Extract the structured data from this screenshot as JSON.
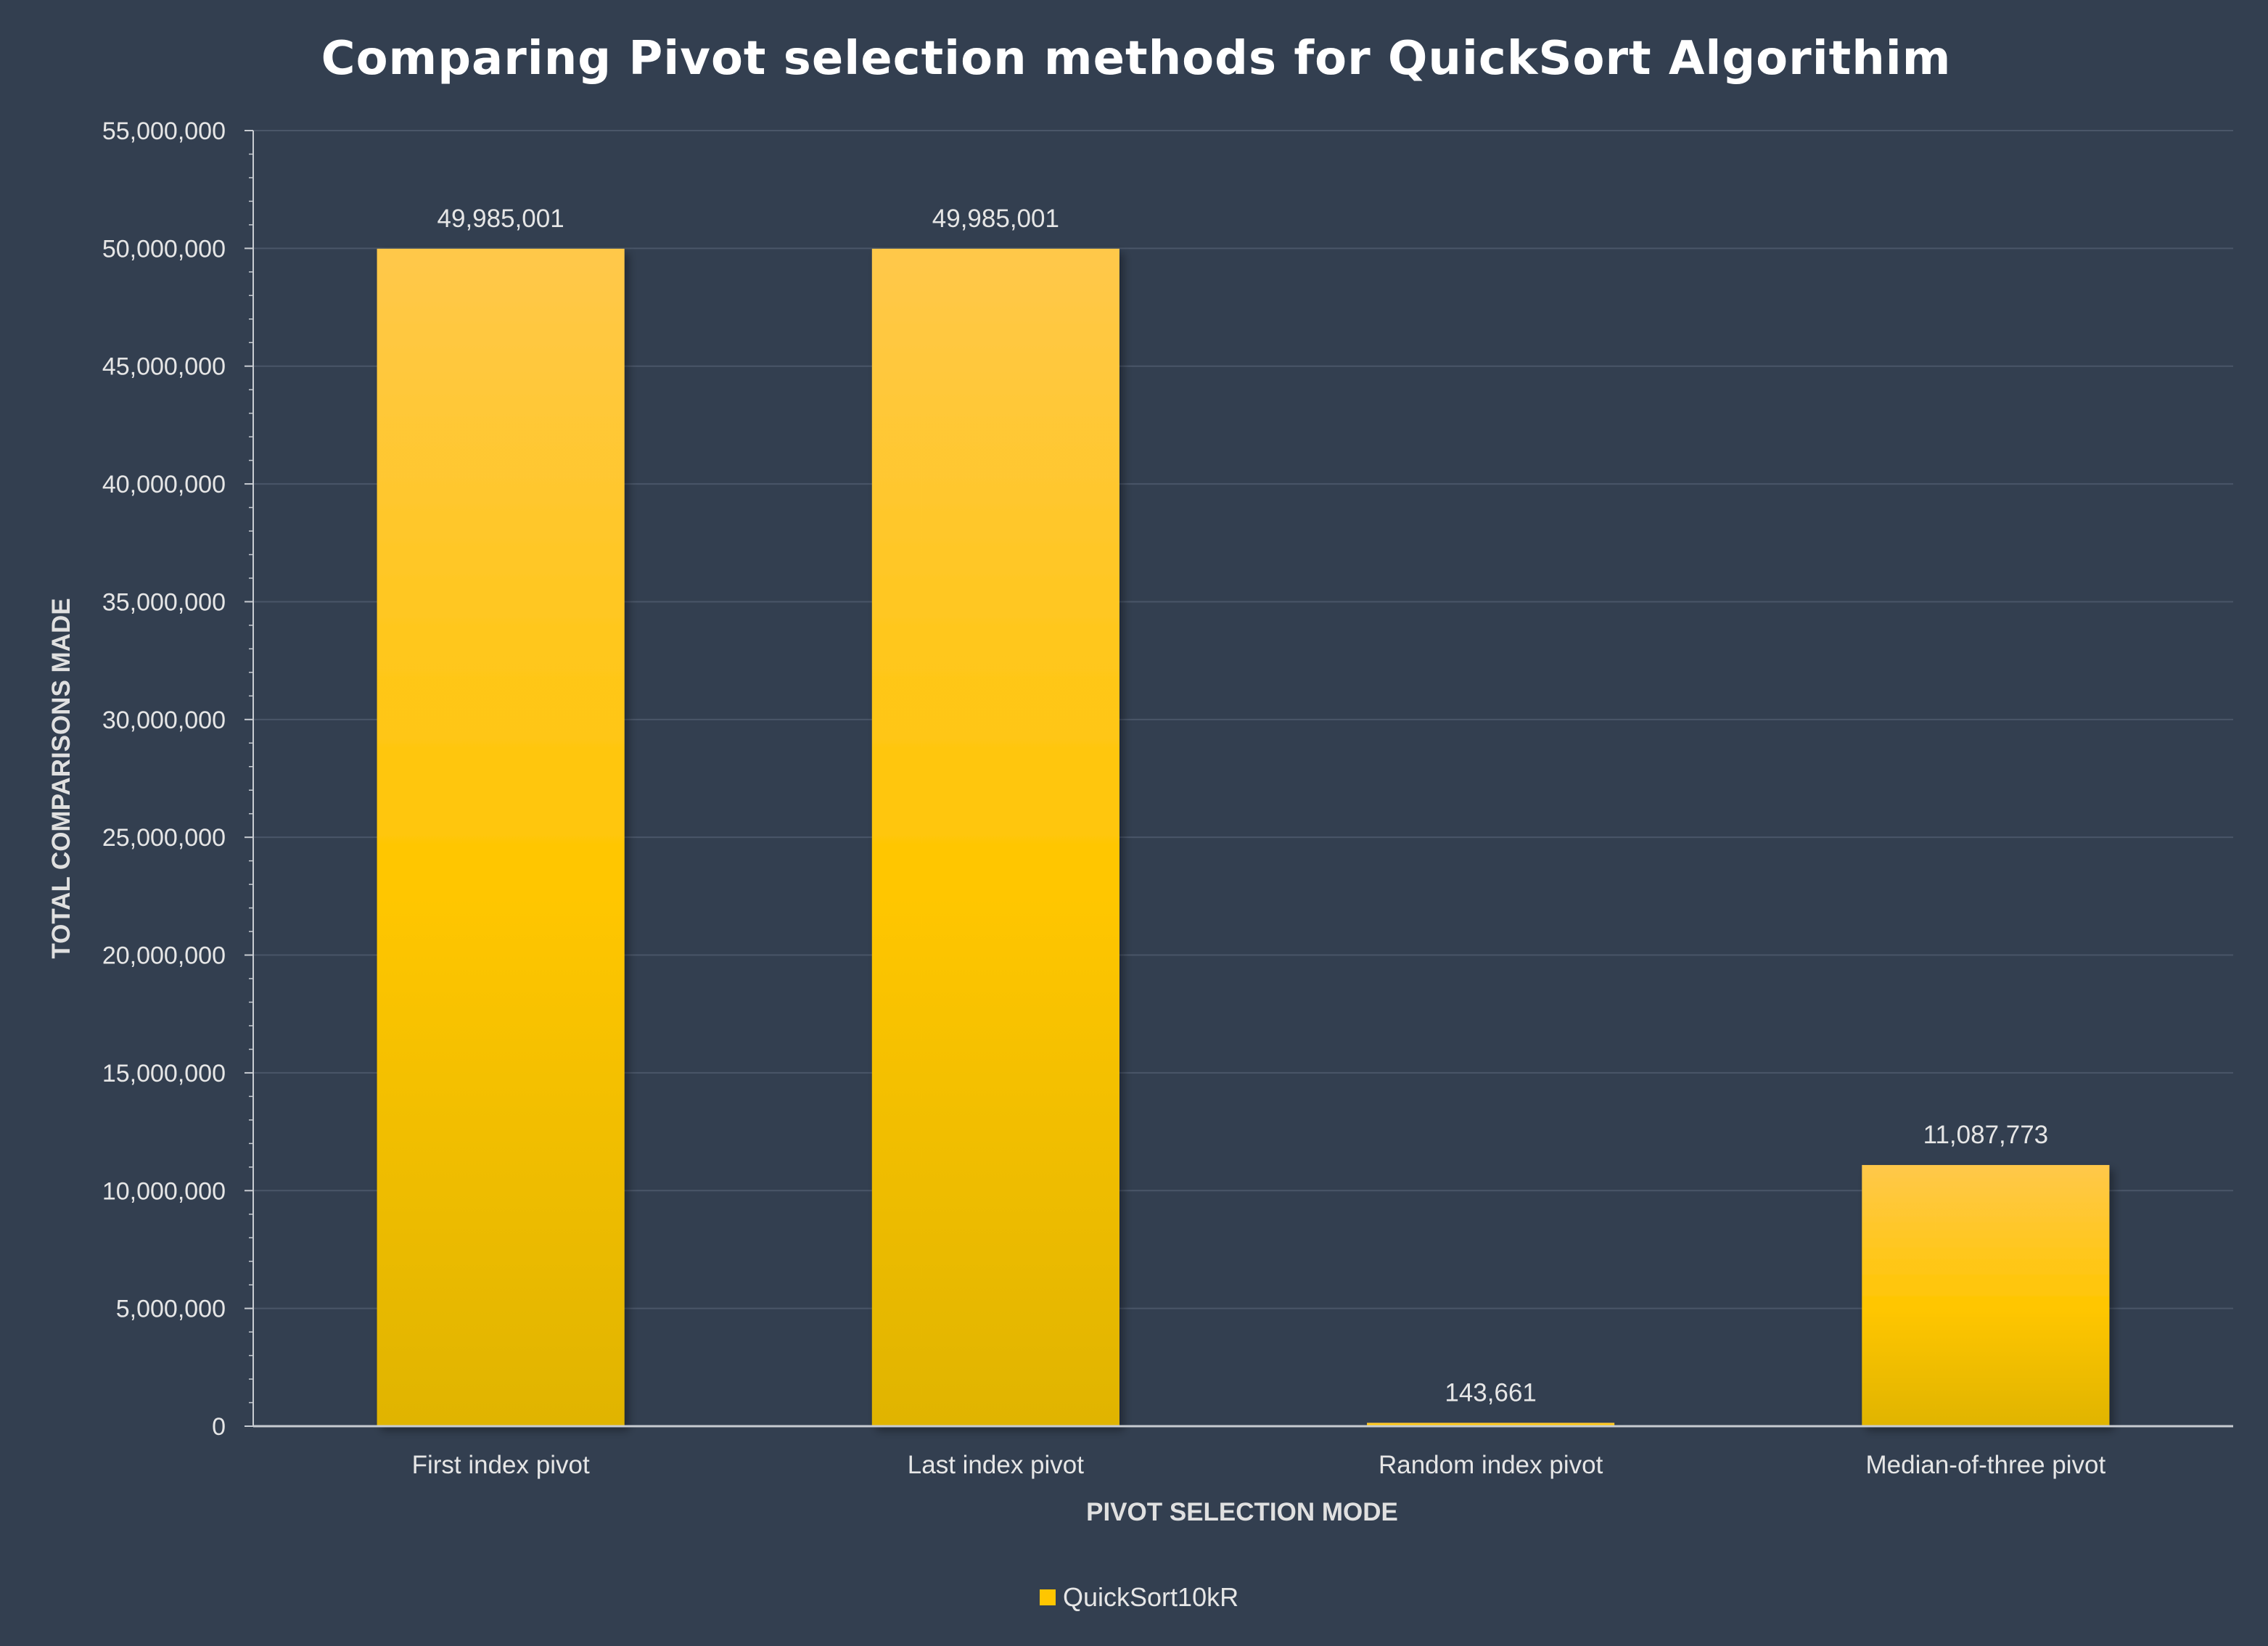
{
  "chart_data": {
    "type": "bar",
    "title": "Comparing Pivot selection methods for QuickSort Algorithim",
    "xlabel": "PIVOT SELECTION MODE",
    "ylabel": "TOTAL COMPARISONS MADE",
    "categories": [
      "First index pivot",
      "Last index pivot",
      "Random index pivot",
      "Median-of-three pivot"
    ],
    "series": [
      {
        "name": "QuickSort10kR",
        "values": [
          49985001,
          49985001,
          143661,
          11087773
        ],
        "data_labels": [
          "49,985,001",
          "49,985,001",
          "143,661",
          "11,087,773"
        ]
      }
    ],
    "ylim": [
      0,
      55000000
    ],
    "y_ticks": [
      0,
      5000000,
      10000000,
      15000000,
      20000000,
      25000000,
      30000000,
      35000000,
      40000000,
      45000000,
      50000000,
      55000000
    ],
    "y_tick_labels": [
      "0",
      "5,000,000",
      "10,000,000",
      "15,000,000",
      "20,000,000",
      "25,000,000",
      "30,000,000",
      "35,000,000",
      "40,000,000",
      "45,000,000",
      "50,000,000",
      "55,000,000"
    ],
    "grid": true,
    "legend_position": "bottom",
    "colors": {
      "background": "#333f50",
      "bar_top": "#ffc84a",
      "bar_mid": "#ffc600",
      "bar_bottom": "#e0b400",
      "gridline": "#4a5668",
      "axis": "#c8ccd2"
    }
  }
}
